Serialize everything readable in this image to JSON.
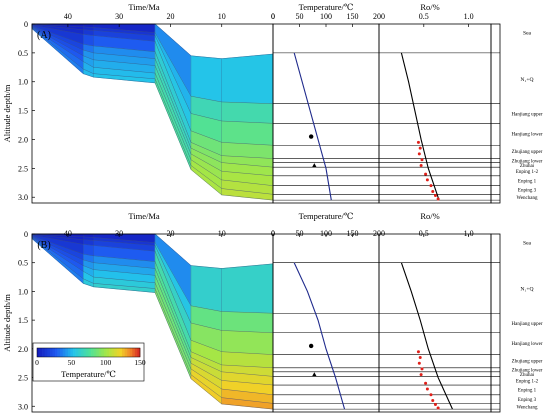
{
  "chart_data": [
    {
      "panel": "(A)",
      "type": "area",
      "title": "",
      "xlabel": "Time/Ma",
      "ylabel": "Altitude depth/m",
      "xticks": [
        40,
        30,
        20,
        10,
        0
      ],
      "yticks": [
        "0",
        "0.5",
        "1.0",
        "1.5",
        "2.0",
        "2.5",
        "3.0"
      ],
      "xlim": [
        47,
        0
      ],
      "ylim": [
        0,
        3.1
      ],
      "burial_times": [
        47,
        37,
        35,
        23,
        16,
        10,
        0
      ],
      "horizons": [
        {
          "name": "Sea",
          "depths": [
            0.0,
            0.0,
            0.0,
            0.0,
            0.55,
            0.6,
            0.52
          ]
        },
        {
          "name": "Hanjiang upper",
          "depths": [
            0.0,
            0.05,
            0.06,
            0.15,
            1.25,
            1.35,
            1.38
          ]
        },
        {
          "name": "Hanjiang lower",
          "depths": [
            0.01,
            0.1,
            0.11,
            0.2,
            1.55,
            1.68,
            1.72
          ]
        },
        {
          "name": "Zhujiang upper",
          "depths": [
            0.02,
            0.18,
            0.2,
            0.3,
            1.85,
            2.05,
            2.1
          ]
        },
        {
          "name": "Zhujiang lower",
          "depths": [
            0.03,
            0.35,
            0.38,
            0.48,
            2.05,
            2.28,
            2.33
          ]
        },
        {
          "name": "Zhuhai",
          "depths": [
            0.04,
            0.45,
            0.5,
            0.6,
            2.15,
            2.4,
            2.48
          ]
        },
        {
          "name": "Enping 1",
          "depths": [
            0.05,
            0.55,
            0.62,
            0.72,
            2.25,
            2.55,
            2.63
          ]
        },
        {
          "name": "Enping 1-2",
          "depths": [
            0.06,
            0.65,
            0.75,
            0.85,
            2.35,
            2.7,
            2.8
          ]
        },
        {
          "name": "Enping 3",
          "depths": [
            0.07,
            0.78,
            0.86,
            0.95,
            2.45,
            2.85,
            2.95
          ]
        },
        {
          "name": "Wenchang",
          "depths": [
            0.08,
            0.86,
            0.92,
            1.02,
            2.52,
            2.96,
            3.05
          ]
        }
      ],
      "temperature": {
        "xlabel": "Temperature/℃",
        "xticks": [
          0,
          50,
          100,
          150,
          200
        ],
        "xlim": [
          0,
          200
        ],
        "profile": [
          [
            40,
            0.5
          ],
          [
            55,
            1.0
          ],
          [
            70,
            1.5
          ],
          [
            85,
            2.0
          ],
          [
            100,
            2.5
          ],
          [
            110,
            3.05
          ]
        ],
        "measured": [
          [
            72,
            1.95
          ],
          [
            78,
            2.45
          ]
        ]
      },
      "ro": {
        "xlabel": "Ro/%",
        "xticks": [
          "0.5",
          "1.0"
        ],
        "xlim": [
          0,
          1.25
        ],
        "profile": [
          [
            0.25,
            0.5
          ],
          [
            0.33,
            1.0
          ],
          [
            0.4,
            1.5
          ],
          [
            0.47,
            2.0
          ],
          [
            0.55,
            2.5
          ],
          [
            0.67,
            3.05
          ]
        ],
        "measured": [
          [
            0.44,
            2.05
          ],
          [
            0.46,
            2.15
          ],
          [
            0.45,
            2.25
          ],
          [
            0.48,
            2.35
          ],
          [
            0.47,
            2.45
          ],
          [
            0.52,
            2.6
          ],
          [
            0.54,
            2.7
          ],
          [
            0.58,
            2.8
          ],
          [
            0.6,
            2.9
          ],
          [
            0.63,
            2.97
          ],
          [
            0.66,
            3.03
          ]
        ]
      },
      "strata_boundaries": [
        0.5,
        1.38,
        1.72,
        2.1,
        2.33,
        2.4,
        2.48,
        2.63,
        2.8,
        2.95,
        3.05
      ],
      "strata_labels": [
        {
          "text": "Sea",
          "depth": 0.15
        },
        {
          "text": "N₁+Q",
          "depth": 0.95
        },
        {
          "text": "Hanjiang upper",
          "depth": 1.55
        },
        {
          "text": "Hanjiang lower",
          "depth": 1.9
        },
        {
          "text": "Zhujiang upper",
          "depth": 2.2
        },
        {
          "text": "Zhujiang lower",
          "depth": 2.36
        },
        {
          "text": "Zhuhai",
          "depth": 2.44
        },
        {
          "text": "Enping 1-2",
          "depth": 2.55
        },
        {
          "text": "Enping 1",
          "depth": 2.71
        },
        {
          "text": "Enping 3",
          "depth": 2.87
        },
        {
          "text": "Wenchang",
          "depth": 3.0
        }
      ]
    },
    {
      "panel": "(B)",
      "type": "area",
      "title": "",
      "xlabel": "Time/Ma",
      "ylabel": "Altitude depth/m",
      "xticks": [
        40,
        30,
        20,
        10,
        0
      ],
      "yticks": [
        "0",
        "0.5",
        "1.0",
        "1.5",
        "2.0",
        "2.5",
        "3.0"
      ],
      "xlim": [
        47,
        0
      ],
      "ylim": [
        0,
        3.1
      ],
      "burial_times": [
        47,
        37,
        35,
        23,
        16,
        10,
        0
      ],
      "horizons": [
        {
          "name": "Sea",
          "depths": [
            0.0,
            0.0,
            0.0,
            0.0,
            0.55,
            0.6,
            0.52
          ]
        },
        {
          "name": "Hanjiang upper",
          "depths": [
            0.0,
            0.05,
            0.06,
            0.15,
            1.25,
            1.35,
            1.38
          ]
        },
        {
          "name": "Hanjiang lower",
          "depths": [
            0.01,
            0.1,
            0.11,
            0.2,
            1.55,
            1.68,
            1.72
          ]
        },
        {
          "name": "Zhujiang upper",
          "depths": [
            0.02,
            0.18,
            0.2,
            0.3,
            1.85,
            2.05,
            2.1
          ]
        },
        {
          "name": "Zhujiang lower",
          "depths": [
            0.03,
            0.35,
            0.38,
            0.48,
            2.05,
            2.28,
            2.33
          ]
        },
        {
          "name": "Zhuhai",
          "depths": [
            0.04,
            0.45,
            0.5,
            0.6,
            2.15,
            2.4,
            2.48
          ]
        },
        {
          "name": "Enping 1",
          "depths": [
            0.05,
            0.55,
            0.62,
            0.72,
            2.25,
            2.55,
            2.63
          ]
        },
        {
          "name": "Enping 1-2",
          "depths": [
            0.06,
            0.65,
            0.75,
            0.85,
            2.35,
            2.7,
            2.8
          ]
        },
        {
          "name": "Enping 3",
          "depths": [
            0.07,
            0.78,
            0.86,
            0.95,
            2.45,
            2.85,
            2.95
          ]
        },
        {
          "name": "Wenchang",
          "depths": [
            0.08,
            0.86,
            0.92,
            1.02,
            2.52,
            2.96,
            3.05
          ]
        }
      ],
      "temperature": {
        "xlabel": "Temperature/℃",
        "xticks": [
          0,
          50,
          100,
          150,
          200
        ],
        "xlim": [
          0,
          200
        ],
        "profile": [
          [
            40,
            0.5
          ],
          [
            65,
            1.0
          ],
          [
            85,
            1.5
          ],
          [
            100,
            2.0
          ],
          [
            118,
            2.5
          ],
          [
            135,
            3.05
          ]
        ],
        "measured": [
          [
            72,
            1.95
          ],
          [
            78,
            2.45
          ]
        ]
      },
      "ro": {
        "xlabel": "Ro/%",
        "xticks": [
          "0.5",
          "1.0"
        ],
        "xlim": [
          0,
          1.25
        ],
        "profile": [
          [
            0.25,
            0.5
          ],
          [
            0.36,
            1.0
          ],
          [
            0.46,
            1.5
          ],
          [
            0.55,
            2.0
          ],
          [
            0.66,
            2.5
          ],
          [
            0.82,
            3.05
          ]
        ],
        "measured": [
          [
            0.44,
            2.05
          ],
          [
            0.46,
            2.15
          ],
          [
            0.45,
            2.25
          ],
          [
            0.48,
            2.35
          ],
          [
            0.47,
            2.45
          ],
          [
            0.52,
            2.6
          ],
          [
            0.54,
            2.7
          ],
          [
            0.58,
            2.8
          ],
          [
            0.6,
            2.9
          ],
          [
            0.63,
            2.97
          ],
          [
            0.66,
            3.03
          ]
        ]
      },
      "strata_boundaries": [
        0.5,
        1.38,
        1.72,
        2.1,
        2.33,
        2.4,
        2.48,
        2.63,
        2.8,
        2.95,
        3.05
      ],
      "strata_labels": [
        {
          "text": "Sea",
          "depth": 0.15
        },
        {
          "text": "N₁+Q",
          "depth": 0.95
        },
        {
          "text": "Hanjiang upper",
          "depth": 1.55
        },
        {
          "text": "Hanjiang lower",
          "depth": 1.9
        },
        {
          "text": "Zhujiang upper",
          "depth": 2.2
        },
        {
          "text": "Zhujiang lower",
          "depth": 2.36
        },
        {
          "text": "Zhuhai",
          "depth": 2.44
        },
        {
          "text": "Enping 1-2",
          "depth": 2.55
        },
        {
          "text": "Enping 1",
          "depth": 2.71
        },
        {
          "text": "Enping 3",
          "depth": 2.87
        },
        {
          "text": "Wenchang",
          "depth": 3.0
        }
      ]
    }
  ],
  "colorbar": {
    "label": "Temperature/℃",
    "ticks": [
      0,
      50,
      100,
      150
    ],
    "range": [
      0,
      150
    ]
  },
  "colors": {
    "temperature_profile": "#1f2a8c",
    "ro_profile": "#000000",
    "ro_measured": "#e0201a",
    "temperature_measured": "#000000"
  }
}
